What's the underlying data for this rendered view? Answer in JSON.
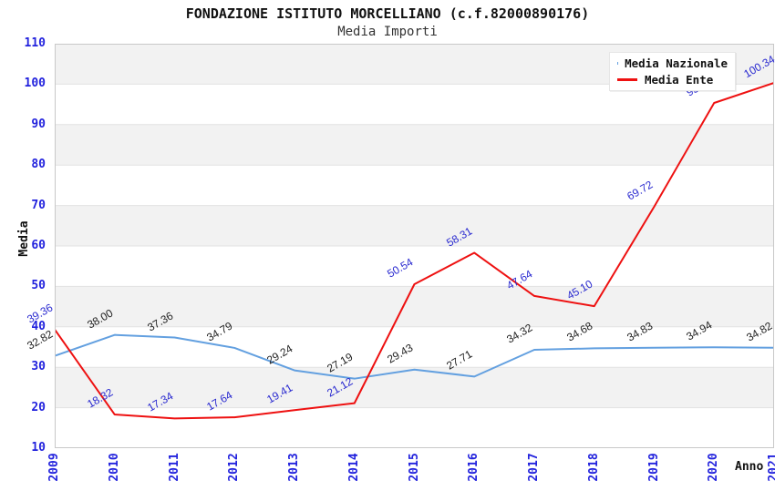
{
  "header": {
    "title": "FONDAZIONE ISTITUTO MORCELLIANO (c.f.82000890176)",
    "subtitle": "Media Importi"
  },
  "chart_data": {
    "type": "line",
    "title": "FONDAZIONE ISTITUTO MORCELLIANO (c.f.82000890176)",
    "subtitle": "Media Importi",
    "xlabel": "Anno",
    "ylabel": "Media",
    "ylim": [
      10,
      110
    ],
    "y_ticks": [
      110,
      100,
      90,
      80,
      70,
      60,
      50,
      40,
      30,
      20,
      10
    ],
    "grid": "horizontal gridlines with alternating gray bands",
    "legend_position": "top-right",
    "categories": [
      "2009",
      "2010",
      "2011",
      "2012",
      "2013",
      "2014",
      "2015",
      "2016",
      "2017",
      "2018",
      "2019",
      "2020",
      "2021"
    ],
    "series": [
      {
        "name": "Media Nazionale",
        "color": "#63a0e0",
        "label_color": "#222222",
        "values": [
          32.82,
          38.0,
          37.36,
          34.79,
          29.24,
          27.19,
          29.43,
          27.71,
          34.32,
          34.68,
          34.83,
          34.94,
          34.82
        ],
        "point_labels": [
          "32.82",
          "38.00",
          "37.36",
          "34.79",
          "29.24",
          "27.19",
          "29.43",
          "27.71",
          "34.32",
          "34.68",
          "34.83",
          "34.94",
          "34.82"
        ]
      },
      {
        "name": "Media Ente",
        "color": "#ee1111",
        "label_color": "#2a2ad0",
        "values": [
          39.36,
          18.32,
          17.34,
          17.64,
          19.41,
          21.12,
          50.54,
          58.31,
          47.64,
          45.1,
          69.72,
          95.36,
          100.34
        ],
        "point_labels": [
          "39.36",
          "18.32",
          "17.34",
          "17.64",
          "19.41",
          "21.12",
          "50.54",
          "58.31",
          "47.64",
          "45.10",
          "69.72",
          "95.36",
          "100.34"
        ]
      }
    ],
    "colors": {
      "axis_label_blue": "#2222dd",
      "band_gray": "#f2f2f2",
      "gridline": "#e2e2e2",
      "plot_border": "#c8c8c8"
    }
  }
}
